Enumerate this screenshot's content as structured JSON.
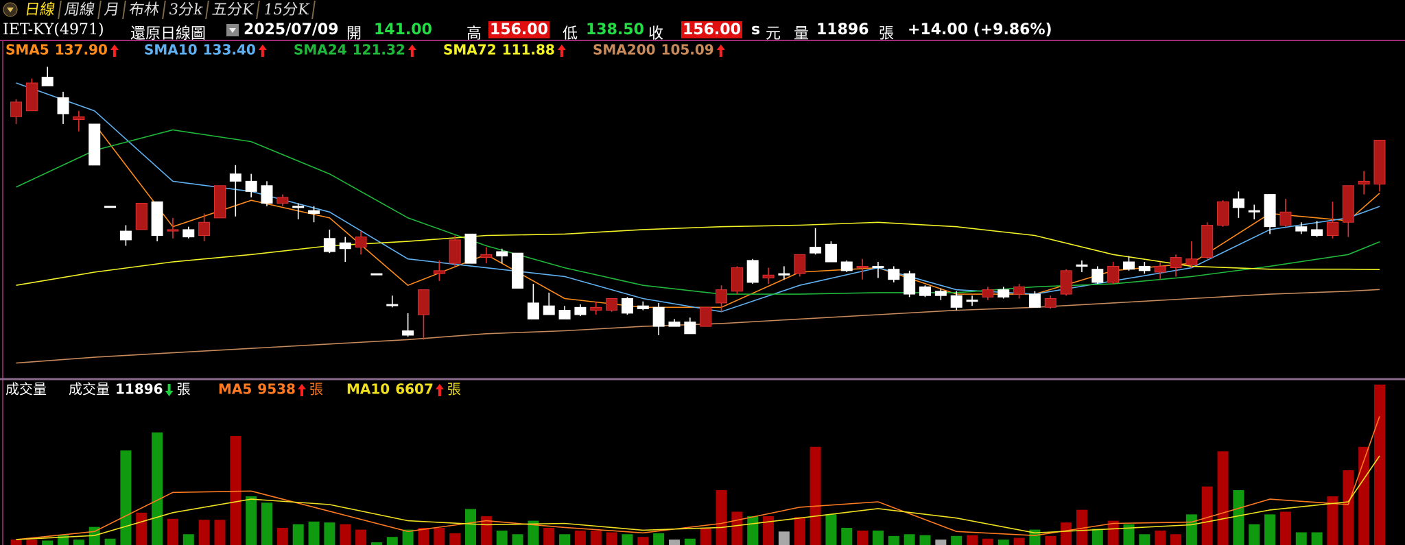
{
  "header": {
    "tabs": [
      "日線",
      "周線",
      "月",
      "布林",
      "3分k",
      "五分K",
      "15分K"
    ],
    "symbol": "IET-KY(4971)",
    "chart_kind": "還原日線圖",
    "date": "2025/07/09",
    "fields": [
      {
        "label": "開",
        "value": "141.00"
      },
      {
        "label": "高",
        "value": "156.00"
      },
      {
        "label": "低",
        "value": "138.50"
      },
      {
        "label": "收",
        "value": "156.00"
      }
    ],
    "s": "s",
    "currency": "元",
    "volume_label": "量",
    "volume": "11896",
    "volume_unit": "張",
    "change": "+14.00 (+9.86%)"
  },
  "chart_data": [
    {
      "type": "candlestick",
      "ylim": [
        75,
        190
      ],
      "up_color": "#b01818",
      "down_color": "#ffffff",
      "open": [
        164,
        166,
        177.5,
        170.5,
        163,
        161.5,
        133.5,
        125,
        125.5,
        135,
        125,
        125.5,
        123.5,
        129.5,
        144.5,
        142,
        140.5,
        134.5,
        133.5,
        132,
        122.5,
        121,
        119.5,
        110.5,
        100,
        91,
        96.5,
        110.5,
        114,
        124,
        116,
        118,
        117.5,
        100.5,
        99.5,
        98,
        99,
        98,
        98,
        102,
        99.5,
        99,
        94,
        94,
        92.5,
        100.5,
        104.5,
        115,
        109,
        110.5,
        110.5,
        119.5,
        120.5,
        114.5,
        112.5,
        113,
        112,
        110.5,
        106,
        104.5,
        103,
        101.5,
        102.5,
        105,
        103.5,
        103.5,
        99,
        103.5,
        113.5,
        112,
        107.5,
        114.5,
        113,
        111,
        112.5,
        113.5,
        116,
        127,
        136,
        132,
        137.5,
        127,
        126.5,
        125.5,
        123.5,
        128,
        141,
        141
      ],
      "high": [
        170,
        177,
        181,
        172.5,
        166,
        161.5,
        133.5,
        127,
        134.5,
        135,
        129.5,
        126.5,
        131,
        140.5,
        147.5,
        144.5,
        142,
        137.5,
        134.5,
        133.5,
        125.5,
        123,
        125,
        110.5,
        103,
        97,
        105,
        115,
        123.5,
        124,
        119.5,
        119,
        117.5,
        107,
        104,
        99.5,
        100,
        101,
        102,
        102.5,
        101,
        100.5,
        95,
        95.5,
        99,
        106.5,
        113,
        115.5,
        112.5,
        113,
        117,
        126,
        121.5,
        115,
        115.5,
        114.5,
        113,
        111.5,
        106.5,
        105.5,
        104.5,
        103,
        106,
        106,
        107,
        104.5,
        103,
        112,
        115,
        113,
        114.5,
        116.5,
        114.5,
        114.5,
        117,
        121.5,
        128,
        135.5,
        138.5,
        134,
        137.5,
        136,
        128,
        128.5,
        135,
        140.5,
        145.5,
        156
      ],
      "low": [
        161.5,
        166,
        174.5,
        161.5,
        159,
        147.5,
        133.5,
        120,
        125.5,
        121.5,
        122.5,
        122.5,
        121.5,
        129.5,
        130,
        136.5,
        133.5,
        133.5,
        129,
        128,
        117.5,
        114.5,
        117,
        110.5,
        99,
        89,
        88,
        108,
        113,
        114,
        114,
        114,
        105.5,
        95,
        96.5,
        95,
        96,
        96.5,
        97.5,
        96.5,
        98,
        89.5,
        92.5,
        90,
        92.5,
        97.5,
        103.5,
        107,
        107,
        108.5,
        109.5,
        117,
        114.5,
        111,
        108.5,
        109,
        107.5,
        102.5,
        102.5,
        101.5,
        98,
        99.5,
        101.5,
        102,
        102,
        99,
        98.5,
        103,
        111,
        107,
        107,
        111.5,
        110.5,
        108.5,
        109.5,
        112.5,
        115.5,
        126.5,
        129.5,
        129,
        124,
        126.5,
        124,
        123,
        122.5,
        123,
        137.5,
        138.5
      ],
      "close": [
        169,
        175.5,
        174.5,
        165,
        164,
        147.5,
        133.5,
        122,
        134.5,
        123.5,
        125.5,
        123,
        128,
        140.5,
        142,
        138.5,
        134.5,
        136.5,
        133,
        131,
        118,
        119,
        123,
        110.5,
        100,
        89.5,
        105,
        111.5,
        122,
        114,
        117,
        116.5,
        105.5,
        95,
        96.5,
        95,
        96.5,
        99,
        102,
        97,
        98.5,
        92.5,
        92.5,
        90,
        99,
        105,
        112.5,
        107.5,
        110,
        110,
        117,
        117.5,
        114.5,
        111.5,
        113,
        112.5,
        108.5,
        103.5,
        103,
        103,
        99,
        101,
        105,
        102.5,
        106,
        99,
        102,
        111.5,
        113,
        107.5,
        113,
        112,
        111.5,
        113,
        116,
        115.5,
        127,
        135,
        133,
        131.5,
        126.5,
        131.5,
        125,
        123.5,
        128,
        140.5,
        142,
        156
      ],
      "lines": [
        {
          "name": "SMA5",
          "color": "#ff8c1a",
          "arrow": "up",
          "last_label": "137.90",
          "x": [
            0,
            5,
            10,
            15,
            20,
            25,
            30,
            35,
            40,
            45,
            50,
            55,
            60,
            65,
            70,
            75,
            80,
            85,
            87
          ],
          "values": [
            null,
            161.5,
            126.5,
            135.5,
            129.5,
            106.5,
            117,
            102,
            99,
            99,
            111,
            112.5,
            103.5,
            103.5,
            111.5,
            114,
            131,
            128.5,
            137.9
          ]
        },
        {
          "name": "SMA10",
          "color": "#5fb0f0",
          "arrow": "up",
          "last_label": "133.40",
          "x": [
            0,
            5,
            10,
            15,
            20,
            25,
            30,
            35,
            40,
            45,
            50,
            55,
            60,
            65,
            70,
            75,
            80,
            85,
            87
          ],
          "values": [
            175.5,
            166,
            142,
            138.5,
            131.5,
            115.5,
            112.5,
            109.5,
            102,
            97.5,
            106.5,
            112.5,
            105,
            103.5,
            108,
            112.5,
            125.5,
            129.5,
            133.4
          ]
        },
        {
          "name": "SMA24",
          "color": "#1fb83a",
          "arrow": "up",
          "last_label": "121.32",
          "x": [
            0,
            5,
            10,
            15,
            20,
            25,
            30,
            35,
            40,
            45,
            50,
            55,
            60,
            65,
            70,
            75,
            80,
            85,
            87
          ],
          "values": [
            140,
            152.5,
            159.5,
            155.5,
            144.5,
            129.5,
            120,
            112.5,
            106.5,
            103.5,
            103.5,
            104,
            104,
            106,
            107,
            109.5,
            113,
            117,
            121.32
          ]
        },
        {
          "name": "SMA72",
          "color": "#f2f226",
          "arrow": "up",
          "last_label": "111.88",
          "x": [
            0,
            5,
            10,
            15,
            20,
            25,
            30,
            35,
            40,
            45,
            50,
            55,
            60,
            65,
            70,
            75,
            80,
            85,
            87
          ],
          "values": [
            106.5,
            111,
            114.5,
            117,
            120,
            121.5,
            123.5,
            124,
            125.5,
            126.5,
            127,
            128,
            126.5,
            123.5,
            117,
            113,
            112,
            112,
            111.88
          ]
        },
        {
          "name": "SMA200",
          "color": "#c88a5a",
          "arrow": "up",
          "last_label": "105.09",
          "x": [
            0,
            5,
            10,
            15,
            20,
            25,
            30,
            35,
            40,
            45,
            50,
            55,
            60,
            65,
            70,
            75,
            80,
            85,
            87
          ],
          "values": [
            80,
            82,
            83.5,
            85,
            86.5,
            88,
            90,
            91,
            92.5,
            93.5,
            95,
            96.5,
            98,
            99,
            100.5,
            102,
            103.5,
            104.5,
            105.09
          ]
        }
      ]
    },
    {
      "type": "bar",
      "title": "成交量",
      "name": "成交量",
      "unit": "張",
      "arrow": "down",
      "ylim": [
        0,
        12200
      ],
      "up_color": "#b00000",
      "down_color": "#109a10",
      "flat_color": "#a8a8a8",
      "values": [
        400,
        400,
        330,
        730,
        400,
        1340,
        470,
        7010,
        2400,
        8350,
        1940,
        800,
        1870,
        1870,
        8080,
        3610,
        3140,
        1270,
        1540,
        1740,
        1670,
        1540,
        1140,
        200,
        600,
        1140,
        1270,
        1270,
        870,
        2670,
        2140,
        1070,
        800,
        1800,
        1270,
        800,
        1070,
        1070,
        940,
        800,
        600,
        870,
        400,
        470,
        1270,
        4070,
        2470,
        2140,
        2140,
        1000,
        2070,
        7280,
        2270,
        1270,
        1070,
        1070,
        670,
        800,
        730,
        400,
        670,
        730,
        470,
        400,
        530,
        1140,
        670,
        1670,
        2610,
        1200,
        1800,
        1540,
        800,
        1070,
        800,
        2270,
        4340,
        6950,
        4070,
        1540,
        2270,
        2470,
        940,
        940,
        3610,
        5540,
        7280,
        11896
      ],
      "lines": [
        {
          "name": "MA5",
          "color": "#ff7a20",
          "arrow": "up",
          "x": [
            0,
            5,
            10,
            15,
            20,
            25,
            30,
            35,
            40,
            45,
            50,
            55,
            60,
            65,
            70,
            75,
            80,
            85,
            87
          ],
          "values": [
            400,
            1000,
            3900,
            4000,
            2500,
            1000,
            1800,
            1300,
            900,
            1600,
            2800,
            3200,
            1000,
            700,
            1600,
            1700,
            3400,
            3000,
            9538
          ]
        },
        {
          "name": "MA10",
          "color": "#f0e020",
          "arrow": "up",
          "x": [
            0,
            5,
            10,
            15,
            20,
            25,
            30,
            35,
            40,
            45,
            50,
            55,
            60,
            65,
            70,
            75,
            80,
            85,
            87
          ],
          "values": [
            400,
            700,
            2400,
            3400,
            3000,
            1800,
            1500,
            1600,
            1100,
            1300,
            2000,
            2700,
            2000,
            900,
            1200,
            1500,
            2600,
            3200,
            6607
          ]
        }
      ]
    }
  ]
}
